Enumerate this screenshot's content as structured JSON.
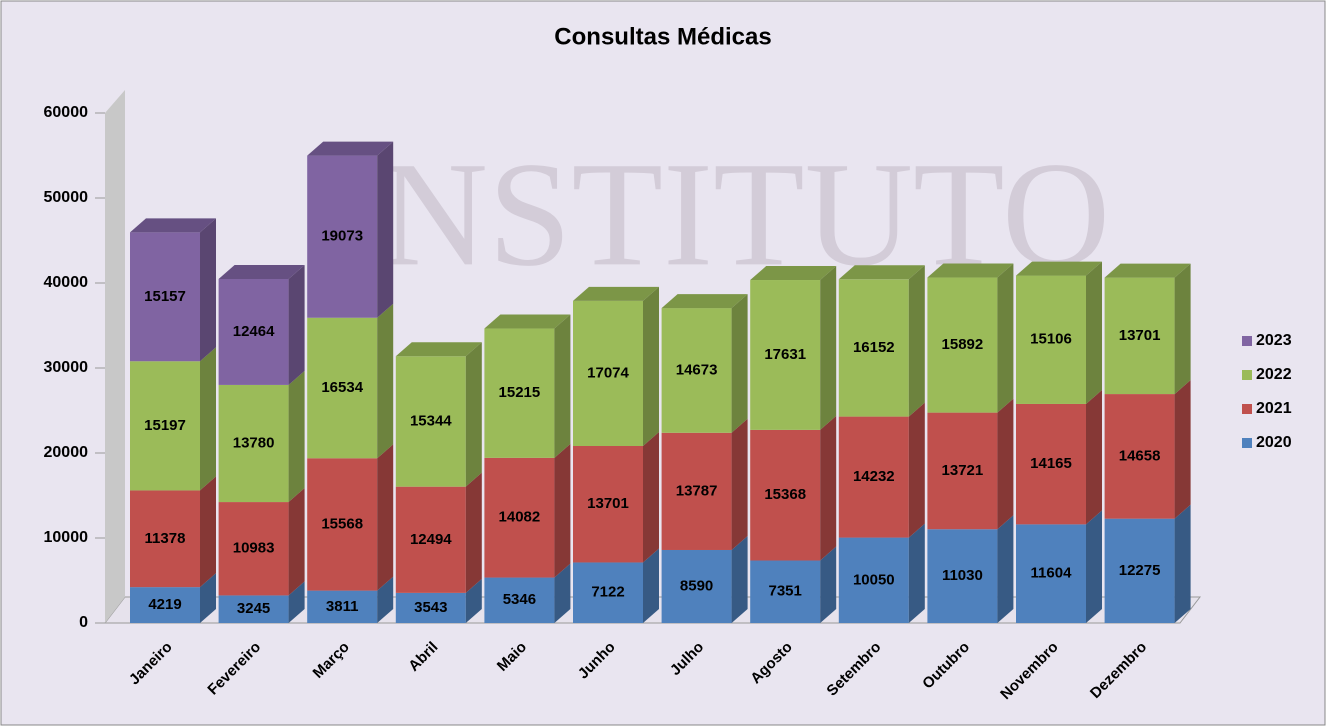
{
  "chart_data": {
    "type": "stacked_bar_3d",
    "title": "Consultas Médicas",
    "watermark": "INSTITUTO",
    "categories": [
      "Janeiro",
      "Fevereiro",
      "Março",
      "Abril",
      "Maio",
      "Junho",
      "Julho",
      "Agosto",
      "Setembro",
      "Outubro",
      "Novembro",
      "Dezembro"
    ],
    "series": [
      {
        "name": "2020",
        "color": "#4f81bd",
        "values": [
          4219,
          3245,
          3811,
          3543,
          5346,
          7122,
          8590,
          7351,
          10050,
          11030,
          11604,
          12275
        ]
      },
      {
        "name": "2021",
        "color": "#c0504d",
        "values": [
          11378,
          10983,
          15568,
          12494,
          14082,
          13701,
          13787,
          15368,
          14232,
          13721,
          14165,
          14658
        ]
      },
      {
        "name": "2022",
        "color": "#9bbb59",
        "values": [
          15197,
          13780,
          16534,
          15344,
          15215,
          17074,
          14673,
          17631,
          16152,
          15892,
          15106,
          13701
        ]
      },
      {
        "name": "2023",
        "color": "#8064a2",
        "values": [
          15157,
          12464,
          19073,
          null,
          null,
          null,
          null,
          null,
          null,
          null,
          null,
          null
        ]
      }
    ],
    "ylim": [
      0,
      60000
    ],
    "yticks": [
      0,
      10000,
      20000,
      30000,
      40000,
      50000,
      60000
    ],
    "legend": "right"
  }
}
